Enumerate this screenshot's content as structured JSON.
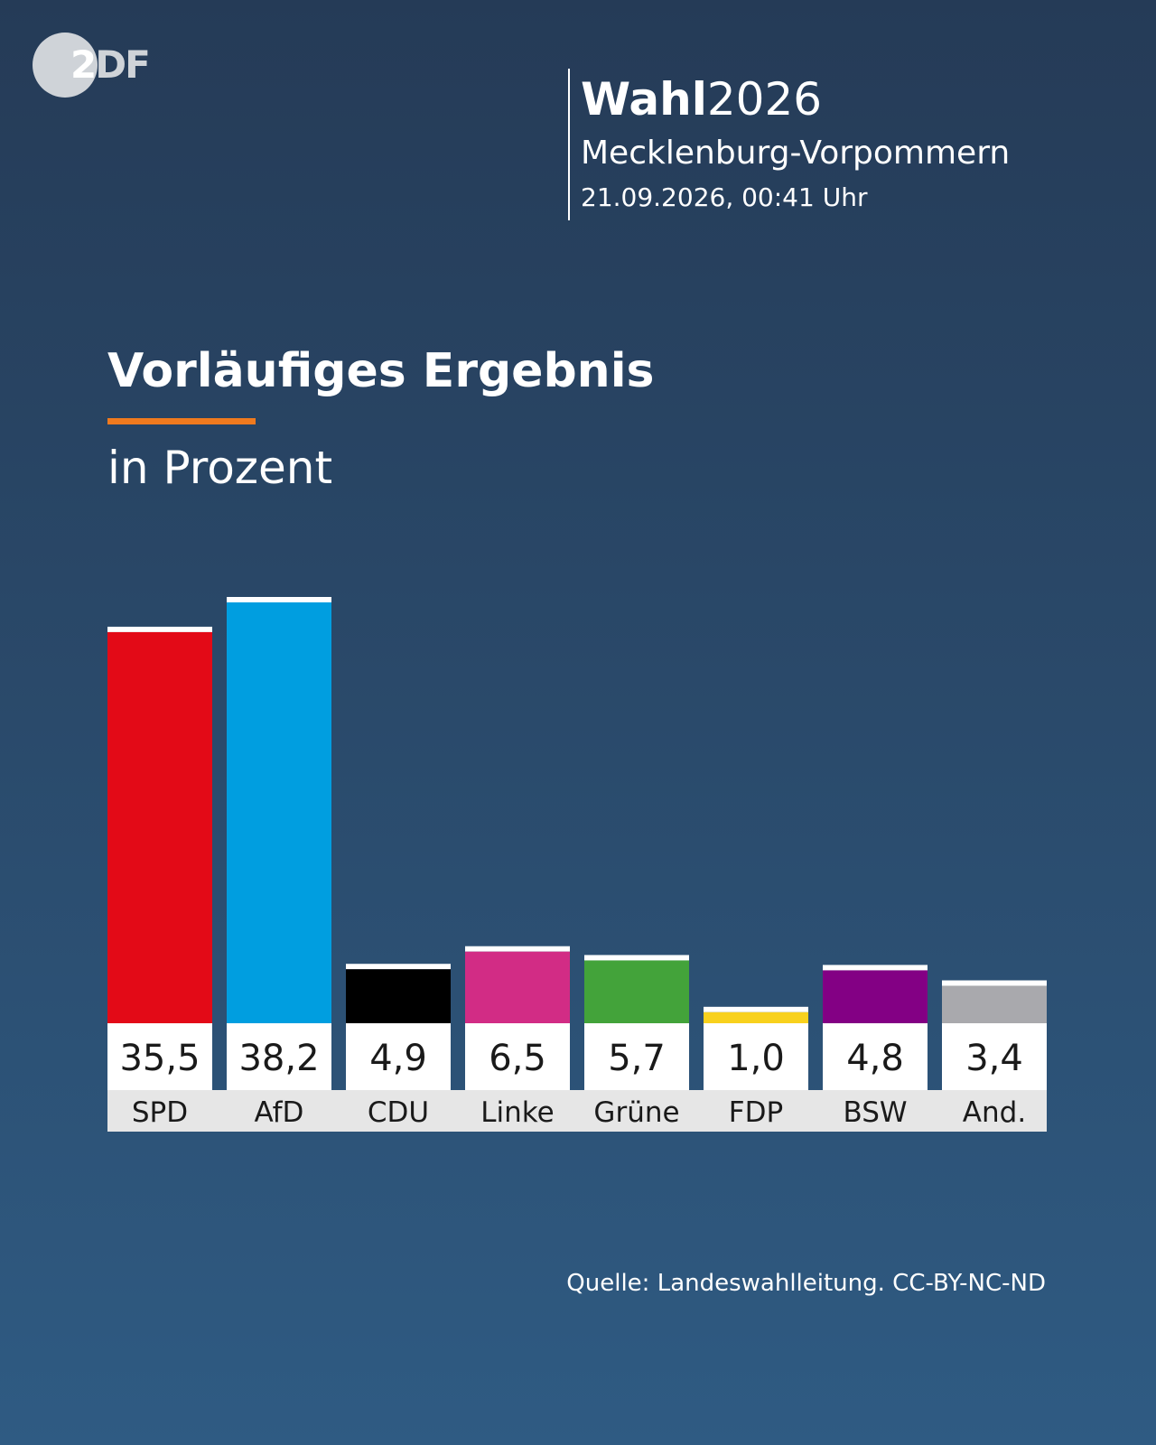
{
  "logo": {
    "text_part1": "2",
    "text_part2": "DF"
  },
  "header": {
    "title_bold": "Wahl",
    "title_year": "2026",
    "region": "Mecklenburg-Vorpommern",
    "datetime": "21.09.2026, 00:41 Uhr"
  },
  "accent_color": "#f07a1e",
  "chart_data": {
    "type": "bar",
    "title": "Vorläufiges Ergebnis",
    "ylabel": "in Prozent",
    "categories": [
      "SPD",
      "AfD",
      "CDU",
      "Linke",
      "Grüne",
      "FDP",
      "BSW",
      "And."
    ],
    "values": [
      35.5,
      38.2,
      4.9,
      6.5,
      5.7,
      1.0,
      4.8,
      3.4
    ],
    "value_labels": [
      "35,5",
      "38,2",
      "4,9",
      "6,5",
      "5,7",
      "1,0",
      "4,8",
      "3,4"
    ],
    "colors": [
      "#e30a17",
      "#009ee0",
      "#000000",
      "#d22c85",
      "#43a33a",
      "#f8d11d",
      "#830084",
      "#a9a9ad"
    ],
    "ylim": [
      0,
      38.2
    ],
    "grid": false,
    "legend": "none"
  },
  "footer": {
    "source": "Quelle: Landeswahlleitung. CC-BY-NC-ND"
  }
}
